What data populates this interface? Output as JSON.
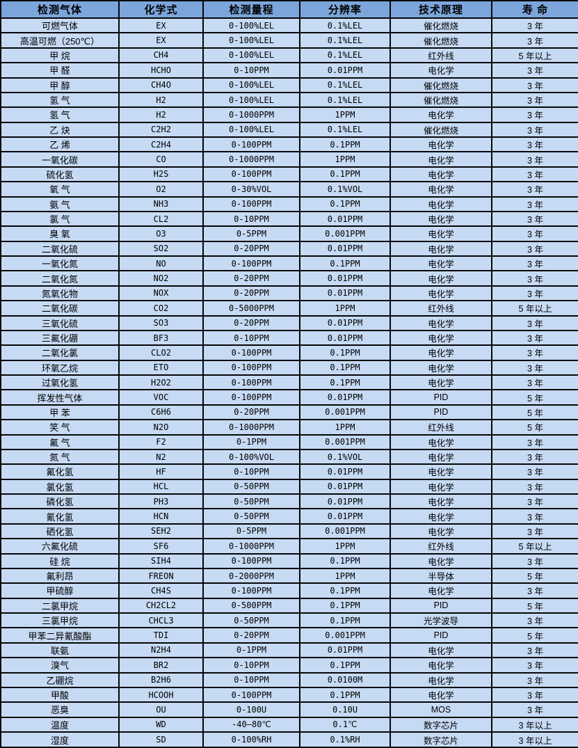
{
  "table": {
    "columns": [
      "检测气体",
      "化学式",
      "检测量程",
      "分辨率",
      "技术原理",
      "寿  命"
    ],
    "colors": {
      "header_bg": "#7ca6db",
      "row_bg": "#c6daf3",
      "border": "#060606",
      "text": "#000000"
    },
    "rows": [
      [
        "可燃气体",
        "EX",
        "0-100%LEL",
        "0.1%LEL",
        "催化燃烧",
        "3 年"
      ],
      [
        "高温可燃（250℃）",
        "EX",
        "0-100%LEL",
        "0.1%LEL",
        "催化燃烧",
        "3 年"
      ],
      [
        "甲 烷",
        "CH4",
        "0-100%LEL",
        "0.1%LEL",
        "红外线",
        "5 年以上"
      ],
      [
        "甲 醛",
        "HCHO",
        "0-10PPM",
        "0.01PPM",
        "电化学",
        "3 年"
      ],
      [
        "甲 醇",
        "CH4O",
        "0-100%LEL",
        "0.1%LEL",
        "催化燃烧",
        "3 年"
      ],
      [
        "氢 气",
        "H2",
        "0-100%LEL",
        "0.1%LEL",
        "催化燃烧",
        "3 年"
      ],
      [
        "氢 气",
        "H2",
        "0-1000PPM",
        "1PPM",
        "电化学",
        "3 年"
      ],
      [
        "乙 炔",
        "C2H2",
        "0-100%LEL",
        "0.1%LEL",
        "催化燃烧",
        "3 年"
      ],
      [
        "乙 烯",
        "C2H4",
        "0-100PPM",
        "0.1PPM",
        "电化学",
        "3 年"
      ],
      [
        "一氧化碳",
        "CO",
        "0-1000PPM",
        "1PPM",
        "电化学",
        "3 年"
      ],
      [
        "硫化氢",
        "H2S",
        "0-100PPM",
        "0.1PPM",
        "电化学",
        "3 年"
      ],
      [
        "氧 气",
        "O2",
        "0-30%VOL",
        "0.1%VOL",
        "电化学",
        "3 年"
      ],
      [
        "氨 气",
        "NH3",
        "0-100PPM",
        "0.1PPM",
        "电化学",
        "3 年"
      ],
      [
        "氯 气",
        "CL2",
        "0-10PPM",
        "0.01PPM",
        "电化学",
        "3 年"
      ],
      [
        "臭 氧",
        "O3",
        "0-5PPM",
        "0.001PPM",
        "电化学",
        "3 年"
      ],
      [
        "二氧化硫",
        "SO2",
        "0-20PPM",
        "0.01PPM",
        "电化学",
        "3 年"
      ],
      [
        "一氧化氮",
        "NO",
        "0-100PPM",
        "0.1PPM",
        "电化学",
        "3 年"
      ],
      [
        "二氧化氮",
        "NO2",
        "0-20PPM",
        "0.01PPM",
        "电化学",
        "3 年"
      ],
      [
        "氮氧化物",
        "NOX",
        "0-20PPM",
        "0.01PPM",
        "电化学",
        "3 年"
      ],
      [
        "二氧化碳",
        "CO2",
        "0-5000PPM",
        "1PPM",
        "红外线",
        "5 年以上"
      ],
      [
        "三氧化硫",
        "SO3",
        "0-20PPM",
        "0.01PPM",
        "电化学",
        "3 年"
      ],
      [
        "三氟化硼",
        "BF3",
        "0-10PPM",
        "0.01PPM",
        "电化学",
        "3 年"
      ],
      [
        "二氧化氯",
        "CLO2",
        "0-100PPM",
        "0.1PPM",
        "电化学",
        "3 年"
      ],
      [
        "环氧乙烷",
        "ETO",
        "0-100PPM",
        "0.1PPM",
        "电化学",
        "3 年"
      ],
      [
        "过氧化氢",
        "H2O2",
        "0-100PPM",
        "0.1PPM",
        "电化学",
        "3 年"
      ],
      [
        "挥发性气体",
        "VOC",
        "0-100PPM",
        "0.01PPM",
        "PID",
        "5 年"
      ],
      [
        "甲 苯",
        "C6H6",
        "0-20PPM",
        "0.001PPM",
        "PID",
        "5 年"
      ],
      [
        "笑 气",
        "N2O",
        "0-1000PPM",
        "1PPM",
        "红外线",
        "5 年"
      ],
      [
        "氟 气",
        "F2",
        "0-1PPM",
        "0.001PPM",
        "电化学",
        "3 年"
      ],
      [
        "氮 气",
        "N2",
        "0-100%VOL",
        "0.1%VOL",
        "电化学",
        "3 年"
      ],
      [
        "氟化氢",
        "HF",
        "0-10PPM",
        "0.01PPM",
        "电化学",
        "3 年"
      ],
      [
        "氯化氢",
        "HCL",
        "0-50PPM",
        "0.01PPM",
        "电化学",
        "3 年"
      ],
      [
        "磷化氢",
        "PH3",
        "0-50PPM",
        "0.01PPM",
        "电化学",
        "3 年"
      ],
      [
        "氰化氢",
        "HCN",
        "0-50PPM",
        "0.01PPM",
        "电化学",
        "3 年"
      ],
      [
        "硒化氢",
        "SEH2",
        "0-5PPM",
        "0.001PPM",
        "电化学",
        "3 年"
      ],
      [
        "六氟化硫",
        "SF6",
        "0-1000PPM",
        "1PPM",
        "红外线",
        "5 年以上"
      ],
      [
        "硅 烷",
        "SIH4",
        "0-100PPM",
        "0.1PPM",
        "电化学",
        "3 年"
      ],
      [
        "氟利昂",
        "FREON",
        "0-2000PPM",
        "1PPM",
        "半导体",
        "5 年"
      ],
      [
        "甲硫醇",
        "CH4S",
        "0-100PPM",
        "0.1PPM",
        "电化学",
        "3 年"
      ],
      [
        "二氯甲烷",
        "CH2CL2",
        "0-500PPM",
        "0.1PPM",
        "PID",
        "5 年"
      ],
      [
        "三氯甲烷",
        "CHCL3",
        "0-50PPM",
        "0.1PPM",
        "光学波导",
        "3 年"
      ],
      [
        "甲苯二异氰酸酯",
        "TDI",
        "0-20PPM",
        "0.001PPM",
        "PID",
        "5 年"
      ],
      [
        "联氨",
        "N2H4",
        "0-1PPM",
        "0.01PPM",
        "电化学",
        "3 年"
      ],
      [
        "溴气",
        "BR2",
        "0-10PPM",
        "0.1PPM",
        "电化学",
        "3 年"
      ],
      [
        "乙硼烷",
        "B2H6",
        "0-10PPM",
        "0.0100M",
        "电化学",
        "3 年"
      ],
      [
        "甲酸",
        "HCOOH",
        "0-100PPM",
        "0.1PPM",
        "电化学",
        "3 年"
      ],
      [
        "恶臭",
        "OU",
        "0-100U",
        "0.10U",
        "MOS",
        "3 年"
      ],
      [
        "温度",
        "WD",
        "-40—80℃",
        "0.1℃",
        "数字芯片",
        "3 年以上"
      ],
      [
        "湿度",
        "SD",
        "0-100%RH",
        "0.1%RH",
        "数字芯片",
        "3 年以上"
      ]
    ]
  }
}
